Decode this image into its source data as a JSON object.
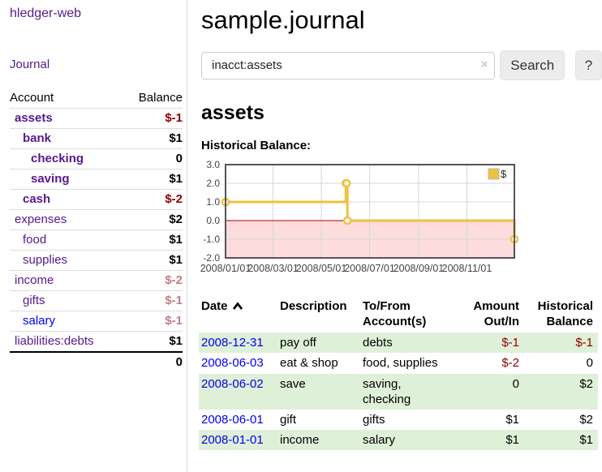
{
  "colors": {
    "link_visited": "#551a8b",
    "link_unvisited": "#0000ee",
    "negative": "#8f0000",
    "negative_muted": "#bf7f84",
    "row_stripe": "#dff0d8"
  },
  "sidebar": {
    "brand": "hledger-web",
    "journal_link": "Journal",
    "accounts_header": {
      "account": "Account",
      "balance": "Balance"
    },
    "accounts": [
      {
        "name": "assets",
        "depth": 0,
        "bold": true,
        "balance": "$-1",
        "negative": true,
        "dim": false,
        "link": "visited"
      },
      {
        "name": "bank",
        "depth": 1,
        "bold": true,
        "balance": "$1",
        "negative": false,
        "dim": false,
        "link": "visited"
      },
      {
        "name": "checking",
        "depth": 2,
        "bold": true,
        "balance": "0",
        "negative": false,
        "dim": false,
        "link": "visited"
      },
      {
        "name": "saving",
        "depth": 2,
        "bold": true,
        "balance": "$1",
        "negative": false,
        "dim": false,
        "link": "visited"
      },
      {
        "name": "cash",
        "depth": 1,
        "bold": true,
        "balance": "$-2",
        "negative": true,
        "dim": false,
        "link": "visited"
      },
      {
        "name": "expenses",
        "depth": 0,
        "bold": false,
        "balance": "$2",
        "negative": false,
        "dim": false,
        "link": "visited"
      },
      {
        "name": "food",
        "depth": 1,
        "bold": false,
        "balance": "$1",
        "negative": false,
        "dim": false,
        "link": "visited"
      },
      {
        "name": "supplies",
        "depth": 1,
        "bold": false,
        "balance": "$1",
        "negative": false,
        "dim": false,
        "link": "visited"
      },
      {
        "name": "income",
        "depth": 0,
        "bold": false,
        "balance": "$-2",
        "negative": true,
        "dim": true,
        "link": "visited"
      },
      {
        "name": "gifts",
        "depth": 1,
        "bold": false,
        "balance": "$-1",
        "negative": true,
        "dim": true,
        "link": "visited"
      },
      {
        "name": "salary",
        "depth": 1,
        "bold": false,
        "balance": "$-1",
        "negative": true,
        "dim": true,
        "link": "unvisited"
      },
      {
        "name": "liabilities:debts",
        "depth": 0,
        "bold": false,
        "balance": "$1",
        "negative": false,
        "dim": false,
        "link": "visited"
      }
    ],
    "total": "0"
  },
  "header": {
    "title": "sample.journal"
  },
  "search": {
    "query": "inacct:assets",
    "clear_icon": "×",
    "button_label": "Search",
    "help_label": "?"
  },
  "account_page": {
    "title": "assets",
    "chart_label": "Historical Balance:"
  },
  "chart_data": {
    "type": "line",
    "title": "Historical Balance",
    "steps": true,
    "series": [
      {
        "name": "$",
        "color": "#edc240",
        "points": [
          {
            "date": "2008-01-01",
            "value": 1
          },
          {
            "date": "2008-06-01",
            "value": 2
          },
          {
            "date": "2008-06-02",
            "value": 2
          },
          {
            "date": "2008-06-03",
            "value": 0
          },
          {
            "date": "2008-12-31",
            "value": -1
          }
        ]
      }
    ],
    "x_range": [
      "2008-01-01",
      "2008-12-31"
    ],
    "x_ticks": [
      "2008/01/01",
      "2008/03/01",
      "2008/05/01",
      "2008/07/01",
      "2008/09/01",
      "2008/11/01"
    ],
    "y_ticks": [
      3.0,
      2.0,
      1.0,
      0.0,
      -1.0,
      -2.0
    ],
    "ylim": [
      -2,
      3
    ],
    "grid": true,
    "legend": {
      "label": "$",
      "position": "top-right"
    },
    "negative_region": {
      "from": 0,
      "to": -2,
      "fill": "#fcdcdc",
      "line_color": "#aa0000"
    },
    "axis_color": "#545454",
    "gridline_color": "#d7d7d7",
    "tick_label_color": "#444444"
  },
  "register": {
    "columns": [
      "Date",
      "Description",
      "To/From Account(s)",
      "Amount Out/In",
      "Historical Balance"
    ],
    "sort_column": "Date",
    "sort_direction": "ascending",
    "rows": [
      {
        "date": "2008-12-31",
        "description": "pay off",
        "accounts": "debts",
        "amount": "$-1",
        "balance": "$-1"
      },
      {
        "date": "2008-06-03",
        "description": "eat & shop",
        "accounts": "food, supplies",
        "amount": "$-2",
        "balance": "0"
      },
      {
        "date": "2008-06-02",
        "description": "save",
        "accounts": "saving, checking",
        "amount": "0",
        "balance": "$2"
      },
      {
        "date": "2008-06-01",
        "description": "gift",
        "accounts": "gifts",
        "amount": "$1",
        "balance": "$2"
      },
      {
        "date": "2008-01-01",
        "description": "income",
        "accounts": "salary",
        "amount": "$1",
        "balance": "$1"
      }
    ]
  }
}
